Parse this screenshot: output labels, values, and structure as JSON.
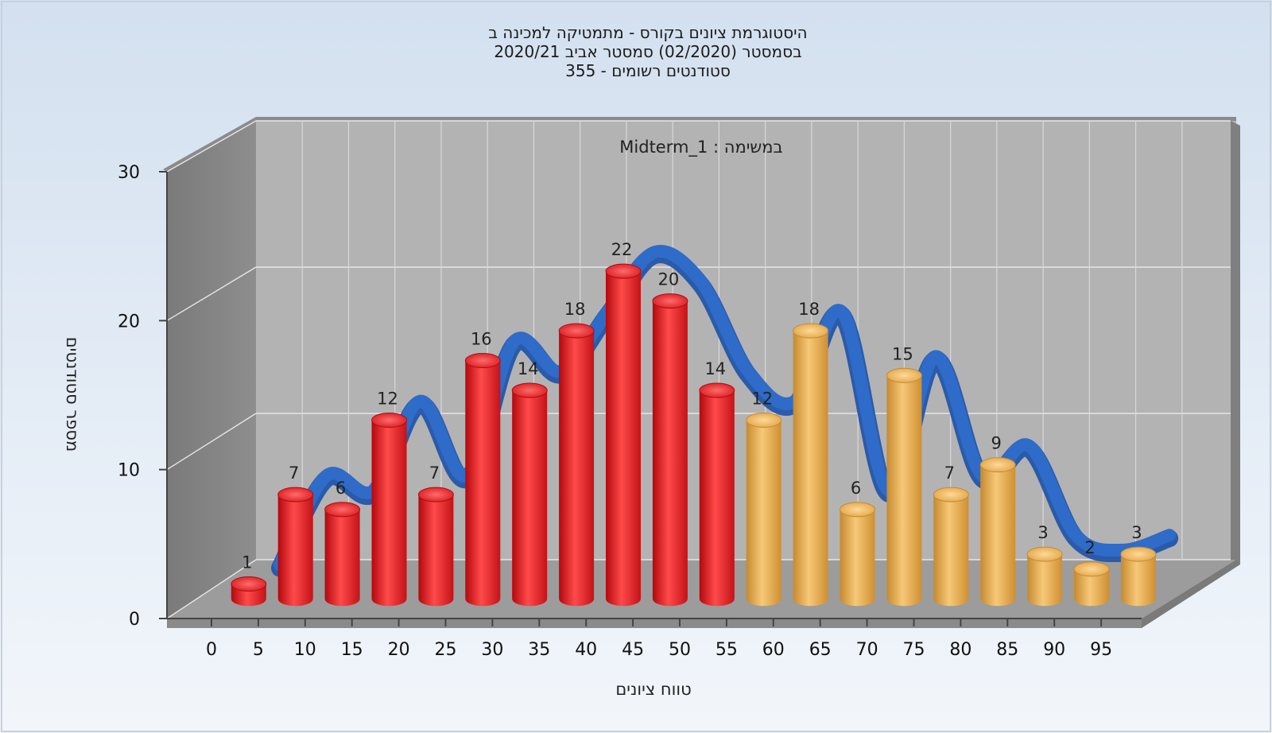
{
  "chart_data": {
    "type": "bar",
    "title_lines": [
      "היסטוגרמת ציונים בקורס - מתמטיקה למכינה ב",
      "בסמסטר  (02/2020)  סמסטר אביב 2020/21",
      "סטודנטים רשומים - 355"
    ],
    "subtitle": "Midterm_1 : במשימה",
    "xlabel": "טווח ציונים",
    "ylabel": "מספר סטודנטים",
    "categories": [
      "0",
      "5",
      "10",
      "15",
      "20",
      "25",
      "30",
      "35",
      "40",
      "45",
      "50",
      "55",
      "60",
      "65",
      "70",
      "75",
      "80",
      "85",
      "90",
      "95"
    ],
    "values": [
      1,
      7,
      6,
      12,
      7,
      16,
      14,
      18,
      22,
      20,
      14,
      12,
      18,
      6,
      15,
      7,
      9,
      3,
      2,
      3
    ],
    "ylim": [
      0,
      30
    ],
    "yticks": [
      "0",
      "10",
      "20",
      "30"
    ],
    "grid": true,
    "series_style": {
      "below_threshold_color": "#e8242a",
      "above_threshold_color": "#f0b356",
      "threshold": 55,
      "trend_color": "#2f6bc8"
    }
  }
}
